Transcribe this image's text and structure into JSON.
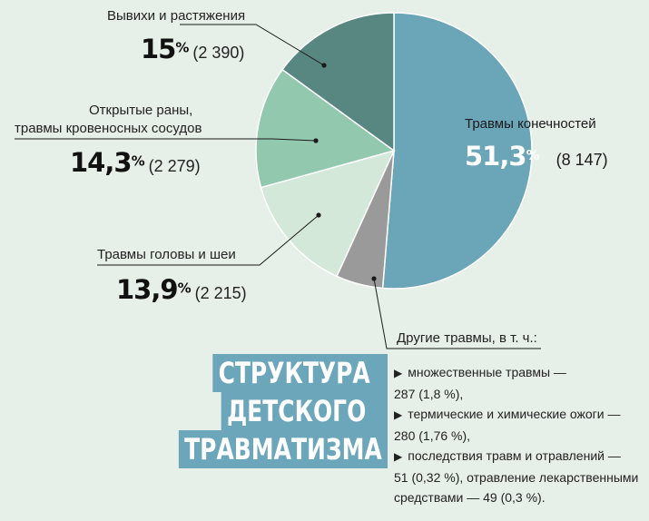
{
  "title": {
    "lines": [
      "СТРУКТУРА",
      "ДЕТСКОГО",
      "ТРАВМАТИЗМА"
    ]
  },
  "chart_data": {
    "type": "pie",
    "title": "СТРУКТУРА ДЕТСКОГО ТРАВМАТИЗМА",
    "start_angle_deg": 0,
    "direction": "clockwise",
    "slices": [
      {
        "label": "Травмы конечностей",
        "percent": 51.3,
        "percent_text": "51,3",
        "count": 8147,
        "count_text": "(8 147)",
        "color": "#6ba5b8"
      },
      {
        "label": "Другие травмы, в т. ч.:",
        "percent": 5.5,
        "count": null,
        "color": "#9a9a9a"
      },
      {
        "label": "Травмы головы и шеи",
        "percent": 13.9,
        "percent_text": "13,9",
        "count": 2215,
        "count_text": "(2 215)",
        "color": "#d3e8d9"
      },
      {
        "label": "Открытые раны, травмы кровеносных сосудов",
        "percent": 14.3,
        "percent_text": "14,3",
        "count": 2279,
        "count_text": "(2 279)",
        "color": "#92c8ad"
      },
      {
        "label": "Вывихи и растяжения",
        "percent": 15.0,
        "percent_text": "15",
        "count": 2390,
        "count_text": "(2 390)",
        "color": "#578780"
      }
    ],
    "other_details": [
      {
        "name": "множественные травмы",
        "count": 287,
        "percent": 1.8
      },
      {
        "name": "термические и химические ожоги",
        "count": 280,
        "percent": 1.76
      },
      {
        "name": "последствия травм и отравлений",
        "count": 51,
        "percent": 0.32
      },
      {
        "name": "отравление лекарственными средствами",
        "count": 49,
        "percent": 0.3
      }
    ]
  },
  "labels": {
    "limbs": {
      "name": "Травмы конечностей",
      "pct": "51,3",
      "sign": "%",
      "count": "(8 147)"
    },
    "dislocations": {
      "name": "Вывихи и растяжения",
      "pct": "15",
      "sign": "%",
      "count": "(2 390)"
    },
    "wounds": {
      "name_line1": "Открытые раны,",
      "name_line2": "травмы кровеносных сосудов",
      "pct": "14,3",
      "sign": "%",
      "count": "(2 279)"
    },
    "head": {
      "name": "Травмы головы и шеи",
      "pct": "13,9",
      "sign": "%",
      "count": "(2 215)"
    },
    "other": {
      "name": "Другие травмы, в т. ч.:",
      "bullet": "▶",
      "items": [
        {
          "line1": "множественные травмы —",
          "line2": "287 (1,8 %),"
        },
        {
          "line1": "термические и химические ожоги —",
          "line2": "280 (1,76 %),"
        },
        {
          "line1": "последствия травм и отравлений —",
          "line2": "51 (0,32 %), отравление лекарственными",
          "line3": "средствами — 49 (0,3 %)."
        }
      ]
    }
  }
}
